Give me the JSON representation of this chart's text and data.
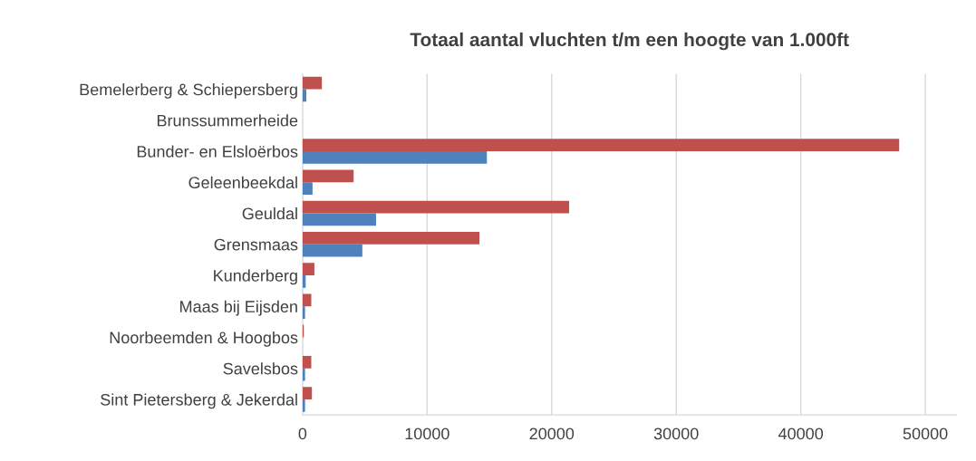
{
  "chart_data": {
    "type": "bar",
    "orientation": "horizontal",
    "title": "Totaal aantal vluchten t/m een hoogte van 1.000ft",
    "categories": [
      "Bemelerberg & Schiepersberg",
      "Brunssummerheide",
      "Bunder- en Elsloërbos",
      "Geleenbeekdal",
      "Geuldal",
      "Grensmaas",
      "Kunderberg",
      "Maas bij Eijsden",
      "Noorbeemden & Hoogbos",
      "Savelsbos",
      "Sint Pietersberg & Jekerdal"
    ],
    "series": [
      {
        "color": "#c0504d",
        "values": [
          1550,
          0,
          47900,
          4100,
          21400,
          14200,
          950,
          700,
          100,
          700,
          750
        ]
      },
      {
        "color": "#4f81bd",
        "values": [
          300,
          0,
          14800,
          800,
          5900,
          4800,
          250,
          200,
          0,
          200,
          200
        ]
      }
    ],
    "xlim": [
      0,
      52500
    ],
    "xticks": [
      0,
      10000,
      20000,
      30000,
      40000,
      50000
    ],
    "grid": "x",
    "legend": false
  }
}
